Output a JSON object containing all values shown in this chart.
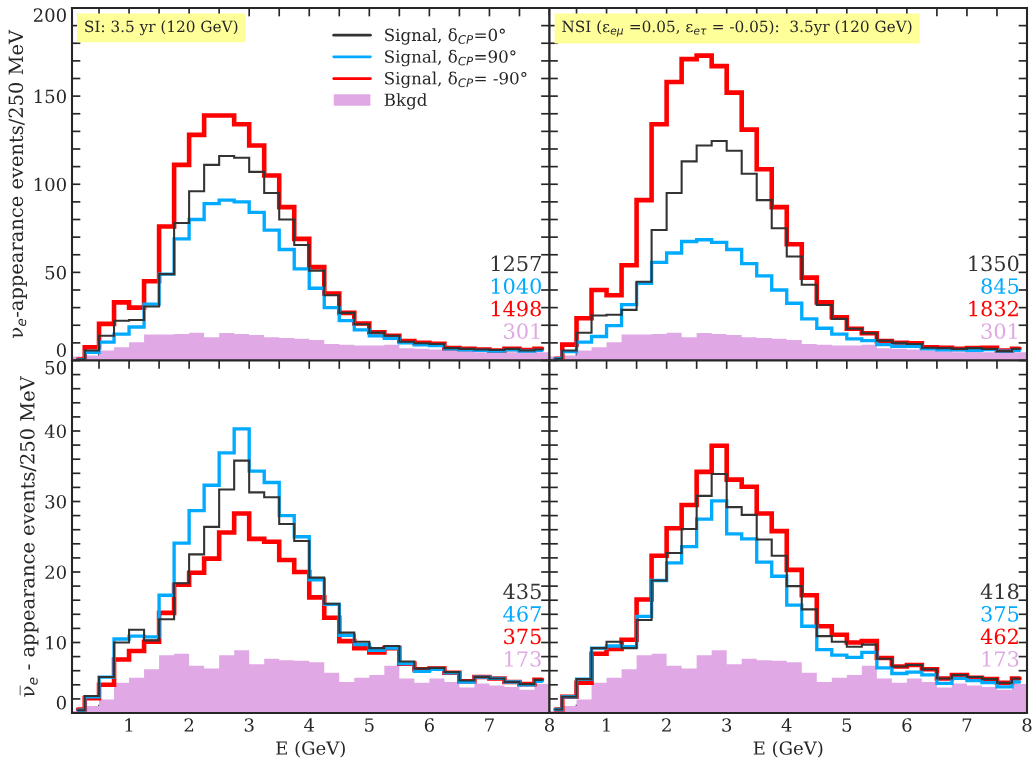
{
  "chart_data": [
    {
      "type": "histogram",
      "ylabel": "ν$_{e}$-appearance events/250 MeV",
      "bins": [
        0.05,
        0.25,
        0.5,
        0.75,
        1,
        1.25,
        1.5,
        1.75,
        2,
        2.25,
        2.5,
        2.75,
        3,
        3.25,
        3.5,
        3.75,
        4,
        4.25,
        4.5,
        4.75,
        5,
        5.25,
        5.5,
        5.75,
        6,
        6.25,
        6.5,
        6.75,
        7,
        7.25,
        7.5,
        7.75,
        8
      ],
      "xlim": [
        0.05,
        8
      ],
      "xticks": [
        {
          "value": 0.5,
          "label": null
        },
        1,
        {
          "value": 1.5,
          "label": null
        },
        2,
        {
          "value": 2.5,
          "label": null
        },
        3,
        {
          "value": 3.5,
          "label": null
        },
        4,
        {
          "value": 4.5,
          "label": null
        },
        5,
        {
          "value": 5.5,
          "label": null
        },
        6,
        {
          "value": 6.5,
          "label": null
        },
        7,
        {
          "value": 7.5,
          "label": null
        },
        8
      ],
      "ylim": [
        0,
        200
      ],
      "yticks": [
        0,
        {
          "value": 10,
          "label": null
        },
        {
          "value": 20,
          "label": null
        },
        {
          "value": 30,
          "label": null
        },
        {
          "value": 40,
          "label": null
        },
        50,
        {
          "value": 60,
          "label": null
        },
        {
          "value": 70,
          "label": null
        },
        {
          "value": 80,
          "label": null
        },
        {
          "value": 90,
          "label": null
        },
        100,
        {
          "value": 110,
          "label": null
        },
        {
          "value": 120,
          "label": null
        },
        {
          "value": 130,
          "label": null
        },
        {
          "value": 140,
          "label": null
        },
        150,
        {
          "value": 160,
          "label": null
        },
        {
          "value": 170,
          "label": null
        },
        {
          "value": 180,
          "label": null
        },
        {
          "value": 190,
          "label": null
        },
        200
      ],
      "x": [
        0.15,
        0.375,
        0.625,
        0.875,
        1.125,
        1.375,
        1.625,
        1.875,
        2.125,
        2.375,
        2.625,
        2.875,
        3.125,
        3.375,
        3.625,
        3.875,
        4.125,
        4.375,
        4.625,
        4.875,
        5.125,
        5.375,
        5.625,
        5.875,
        6.125,
        6.375,
        6.625,
        6.875,
        7.125,
        7.375,
        7.625,
        7.875
      ],
      "tick_labels": "y",
      "legend": "top right",
      "series": [
        {
          "name": "Signal, δ$_{CP}$=0°",
          "type": "step",
          "color": "#333333",
          "values": [
            0.5,
            5.7,
            14,
            22.6,
            23,
            30.6,
            49,
            78,
            96,
            111,
            116,
            115,
            107,
            95,
            80,
            65.5,
            51,
            37,
            27,
            20.6,
            15.8,
            14,
            10.6,
            9.8,
            9.4,
            7,
            6.6,
            6.2,
            6,
            6.6,
            5.7,
            6.2
          ]
        },
        {
          "name": "Signal, δ$_{CP}$=90°",
          "type": "step",
          "color": "#00aaff",
          "values": [
            0.5,
            4.7,
            10.4,
            15,
            19,
            32,
            49,
            69,
            80,
            89,
            91,
            90,
            84,
            74,
            63,
            52,
            41,
            30,
            22.6,
            17.4,
            14,
            12.6,
            10,
            8.9,
            8.5,
            6.6,
            6,
            5.7,
            5.3,
            6,
            5.3,
            5.7
          ]
        },
        {
          "name": "Signal, δ$_{CP}$= -90°",
          "type": "step",
          "color": "#ff0000",
          "values": [
            0.5,
            7.5,
            20.8,
            33,
            30,
            45,
            76,
            111,
            128,
            139,
            139,
            134,
            122,
            105,
            87,
            69,
            53,
            38,
            27,
            21,
            16,
            14,
            11,
            10,
            9.5,
            7,
            6.6,
            6.2,
            5.7,
            6.6,
            6,
            6.6
          ]
        },
        {
          "name": "Bkgd",
          "type": "histogram",
          "color": "#e0a8e4",
          "values": [
            2.3,
            2.8,
            5.7,
            7.5,
            10.4,
            14.7,
            14.7,
            15,
            15.8,
            13.2,
            15.6,
            15,
            14.5,
            13.2,
            12.8,
            12.3,
            11.7,
            9.4,
            8.9,
            8.5,
            8.5,
            8.9,
            7,
            6.6,
            6.2,
            5.7,
            5.3,
            4.7,
            5.3,
            4.7,
            4.7,
            4.7
          ]
        }
      ],
      "annotations": [
        "SI: 3.5 yr (120 GeV)",
        "1257",
        "1040",
        "1498",
        "301"
      ]
    },
    {
      "type": "histogram",
      "bins": [
        0.05,
        0.25,
        0.5,
        0.75,
        1,
        1.25,
        1.5,
        1.75,
        2,
        2.25,
        2.5,
        2.75,
        3,
        3.25,
        3.5,
        3.75,
        4,
        4.25,
        4.5,
        4.75,
        5,
        5.25,
        5.5,
        5.75,
        6,
        6.25,
        6.5,
        6.75,
        7,
        7.25,
        7.5,
        7.75,
        8
      ],
      "xlim": [
        0.05,
        8
      ],
      "xticks": [
        {
          "value": 0.5,
          "label": null
        },
        1,
        {
          "value": 1.5,
          "label": null
        },
        2,
        {
          "value": 2.5,
          "label": null
        },
        3,
        {
          "value": 3.5,
          "label": null
        },
        4,
        {
          "value": 4.5,
          "label": null
        },
        5,
        {
          "value": 5.5,
          "label": null
        },
        6,
        {
          "value": 6.5,
          "label": null
        },
        7,
        {
          "value": 7.5,
          "label": null
        },
        8
      ],
      "ylim": [
        0,
        200
      ],
      "yticks": [
        0,
        {
          "value": 10,
          "label": null
        },
        {
          "value": 20,
          "label": null
        },
        {
          "value": 30,
          "label": null
        },
        {
          "value": 40,
          "label": null
        },
        50,
        {
          "value": 60,
          "label": null
        },
        {
          "value": 70,
          "label": null
        },
        {
          "value": 80,
          "label": null
        },
        {
          "value": 90,
          "label": null
        },
        100,
        {
          "value": 110,
          "label": null
        },
        {
          "value": 120,
          "label": null
        },
        {
          "value": 130,
          "label": null
        },
        {
          "value": 140,
          "label": null
        },
        150,
        {
          "value": 160,
          "label": null
        },
        {
          "value": 170,
          "label": null
        },
        {
          "value": 180,
          "label": null
        },
        {
          "value": 190,
          "label": null
        },
        200
      ],
      "x": [
        0.15,
        0.375,
        0.625,
        0.875,
        1.125,
        1.375,
        1.625,
        1.875,
        2.125,
        2.375,
        2.625,
        2.875,
        3.125,
        3.375,
        3.625,
        3.875,
        4.125,
        4.375,
        4.625,
        4.875,
        5.125,
        5.375,
        5.625,
        5.875,
        6.125,
        6.375,
        6.625,
        6.875,
        7.125,
        7.375,
        7.625,
        7.875
      ],
      "tick_labels": false,
      "series": [
        {
          "type": "step",
          "color": "#333333",
          "values": [
            1,
            5.7,
            15.7,
            25.5,
            26,
            28.7,
            44.7,
            74,
            95,
            113,
            122,
            124.5,
            119,
            106,
            91,
            75,
            59,
            43,
            31.5,
            23.6,
            18,
            15.5,
            11.3,
            10,
            9.4,
            7.2,
            7,
            6.6,
            7,
            6.6,
            5.3,
            6.6
          ]
        },
        {
          "type": "step",
          "color": "#00aaff",
          "values": [
            1,
            5,
            10.4,
            13.6,
            19.8,
            31.7,
            43.8,
            55.7,
            61,
            67.5,
            68.5,
            67,
            63,
            55,
            48,
            40,
            32.5,
            23.6,
            18.3,
            15,
            12.3,
            11.3,
            9,
            8.1,
            8.1,
            6.6,
            6,
            6,
            5.7,
            6.2,
            5.3,
            5.7
          ]
        },
        {
          "type": "step",
          "color": "#ff0000",
          "values": [
            1,
            9,
            24,
            40,
            37,
            54,
            91,
            134,
            158,
            171,
            173,
            167,
            152,
            131,
            108.5,
            87,
            66,
            47,
            33,
            24.5,
            18,
            15.5,
            11,
            10,
            9.8,
            7.5,
            7.2,
            6.6,
            7,
            7.2,
            5.7,
            6.6
          ]
        },
        {
          "type": "histogram",
          "color": "#e0a8e4",
          "values": [
            2.3,
            2.8,
            5.7,
            7.5,
            10.4,
            14.7,
            14.7,
            15,
            15.8,
            13.2,
            15.6,
            15,
            14.5,
            13.2,
            12.8,
            12.3,
            11.7,
            9.4,
            8.9,
            8.5,
            8.5,
            8.9,
            7,
            6.6,
            6.2,
            5.7,
            5.3,
            4.7,
            5.3,
            4.7,
            4.7,
            4.7
          ]
        }
      ],
      "annotations": [
        "NSI (ε$_{eμ}$ =0.05, ε$_{eτ}$ = -0.05):  3.5yr (120 GeV)",
        "1350",
        "845",
        "1832",
        "301"
      ]
    },
    {
      "type": "histogram",
      "xlabel": "E (GeV)",
      "ylabel": "ν̅$_{e}$ - appearance events/250 MeV",
      "x": [
        0.15,
        0.375,
        0.625,
        0.875,
        1.125,
        1.375,
        1.625,
        1.875,
        2.125,
        2.375,
        2.625,
        2.875,
        3.125,
        3.375,
        3.625,
        3.875,
        4.125,
        4.375,
        4.625,
        4.875,
        5.125,
        5.375,
        5.625,
        5.875,
        6.125,
        6.375,
        6.625,
        6.875,
        7.125,
        7.375,
        7.625,
        7.875
      ],
      "bins": [
        0.05,
        0.25,
        0.5,
        0.75,
        1,
        1.25,
        1.5,
        1.75,
        2,
        2.25,
        2.5,
        2.75,
        3,
        3.25,
        3.5,
        3.75,
        4,
        4.25,
        4.5,
        4.75,
        5,
        5.25,
        5.5,
        5.75,
        6,
        6.25,
        6.5,
        6.75,
        7,
        7.25,
        7.5,
        7.75,
        8
      ],
      "xlim": [
        0.05,
        8
      ],
      "xticks": [
        {
          "value": 0.5,
          "label": null
        },
        1,
        {
          "value": 1.5,
          "label": null
        },
        2,
        {
          "value": 2.5,
          "label": null
        },
        3,
        {
          "value": 3.5,
          "label": null
        },
        4,
        {
          "value": 4.5,
          "label": null
        },
        5,
        {
          "value": 5.5,
          "label": null
        },
        6,
        {
          "value": 6.5,
          "label": null
        },
        7,
        {
          "value": 7.5,
          "label": null
        },
        8
      ],
      "ylim": [
        0,
        50
      ],
      "yticks": [
        0,
        {
          "value": 2,
          "label": null
        },
        {
          "value": 4,
          "label": null
        },
        {
          "value": 6,
          "label": null
        },
        {
          "value": 8,
          "label": null
        },
        10,
        {
          "value": 12,
          "label": null
        },
        {
          "value": 14,
          "label": null
        },
        {
          "value": 16,
          "label": null
        },
        {
          "value": 18,
          "label": null
        },
        20,
        {
          "value": 22,
          "label": null
        },
        {
          "value": 24,
          "label": null
        },
        {
          "value": 26,
          "label": null
        },
        {
          "value": 28,
          "label": null
        },
        30,
        {
          "value": 32,
          "label": null
        },
        {
          "value": 34,
          "label": null
        },
        {
          "value": 36,
          "label": null
        },
        {
          "value": 38,
          "label": null
        },
        40,
        {
          "value": 42,
          "label": null
        },
        {
          "value": 44,
          "label": null
        },
        {
          "value": 46,
          "label": null
        },
        {
          "value": 48,
          "label": null
        },
        50
      ],
      "series": [
        {
          "type": "step",
          "color": "#333333",
          "values": [
            0.4,
            2.4,
            5.1,
            10,
            11.8,
            10.3,
            13.3,
            18.4,
            22.5,
            26.4,
            31.7,
            35.8,
            31.3,
            30.6,
            26.8,
            24.4,
            19.2,
            15.5,
            11.4,
            10.1,
            9.2,
            9.5,
            7.3,
            6.3,
            6.4,
            5.8,
            4.6,
            5.1,
            4.9,
            4.4,
            4.1,
            4.7
          ]
        },
        {
          "type": "step",
          "color": "#00aaff",
          "values": [
            0.4,
            2.3,
            5.1,
            10.5,
            10.9,
            10.8,
            16.7,
            24.1,
            28.7,
            32.3,
            36.9,
            40.3,
            34.3,
            32.7,
            28,
            25,
            18.9,
            15.4,
            11,
            9.7,
            8.9,
            9.2,
            7,
            5.9,
            6.2,
            5.7,
            4.4,
            5.1,
            4.9,
            4.4,
            4,
            4.5
          ]
        },
        {
          "type": "step",
          "color": "#ff0000",
          "values": [
            0.5,
            2.1,
            4,
            7.6,
            8.8,
            10.1,
            14.2,
            18.2,
            19.9,
            21.9,
            25.6,
            28.3,
            24.7,
            24.3,
            21.7,
            20,
            16.4,
            13.5,
            10.2,
            9.2,
            8.6,
            9.2,
            7,
            6.2,
            6.3,
            5.7,
            4.5,
            5.1,
            4.9,
            4.4,
            4.1,
            4.7
          ]
        },
        {
          "type": "histogram",
          "color": "#e0a8e4",
          "values": [
            0.3,
            1,
            1.9,
            4.3,
            5,
            6.2,
            8.2,
            8.4,
            6.7,
            6.3,
            8.2,
            8.9,
            6.9,
            7.7,
            7.5,
            7.4,
            7.2,
            5.7,
            4.4,
            5,
            5.4,
            6.7,
            4.9,
            4.3,
            4.9,
            4.4,
            3.6,
            4.2,
            3.9,
            3.7,
            3.3,
            4.1
          ]
        }
      ],
      "annotations": [
        "435",
        "467",
        "375",
        "173"
      ]
    },
    {
      "type": "histogram",
      "xlabel": "E (GeV)",
      "bins": [
        0.05,
        0.25,
        0.5,
        0.75,
        1,
        1.25,
        1.5,
        1.75,
        2,
        2.25,
        2.5,
        2.75,
        3,
        3.25,
        3.5,
        3.75,
        4,
        4.25,
        4.5,
        4.75,
        5,
        5.25,
        5.5,
        5.75,
        6,
        6.25,
        6.5,
        6.75,
        7,
        7.25,
        7.5,
        7.75,
        8
      ],
      "xlim": [
        0.05,
        8
      ],
      "xticks": [
        {
          "value": 0.5,
          "label": null
        },
        1,
        {
          "value": 1.5,
          "label": null
        },
        2,
        {
          "value": 2.5,
          "label": null
        },
        3,
        {
          "value": 3.5,
          "label": null
        },
        4,
        {
          "value": 4.5,
          "label": null
        },
        5,
        {
          "value": 5.5,
          "label": null
        },
        6,
        {
          "value": 6.5,
          "label": null
        },
        7,
        {
          "value": 7.5,
          "label": null
        },
        8
      ],
      "ylim": [
        0,
        50
      ],
      "yticks": [
        0,
        {
          "value": 2,
          "label": null
        },
        {
          "value": 4,
          "label": null
        },
        {
          "value": 6,
          "label": null
        },
        {
          "value": 8,
          "label": null
        },
        10,
        {
          "value": 12,
          "label": null
        },
        {
          "value": 14,
          "label": null
        },
        {
          "value": 16,
          "label": null
        },
        {
          "value": 18,
          "label": null
        },
        20,
        {
          "value": 22,
          "label": null
        },
        {
          "value": 24,
          "label": null
        },
        {
          "value": 26,
          "label": null
        },
        {
          "value": 28,
          "label": null
        },
        30,
        {
          "value": 32,
          "label": null
        },
        {
          "value": 34,
          "label": null
        },
        {
          "value": 36,
          "label": null
        },
        {
          "value": 38,
          "label": null
        },
        40,
        {
          "value": 42,
          "label": null
        },
        {
          "value": 44,
          "label": null
        },
        {
          "value": 46,
          "label": null
        },
        {
          "value": 48,
          "label": null
        },
        50
      ],
      "x": [
        0.15,
        0.375,
        0.625,
        0.875,
        1.125,
        1.375,
        1.625,
        1.875,
        2.125,
        2.375,
        2.625,
        2.875,
        3.125,
        3.375,
        3.625,
        3.875,
        4.125,
        4.375,
        4.625,
        4.875,
        5.125,
        5.375,
        5.625,
        5.875,
        6.125,
        6.375,
        6.625,
        6.875,
        7.125,
        7.375,
        7.625,
        7.875
      ],
      "tick_labels": "x",
      "series": [
        {
          "type": "step",
          "color": "#333333",
          "values": [
            0.5,
            2.3,
            4.8,
            9.2,
            10.1,
            9.2,
            13.2,
            18.8,
            22.7,
            26.1,
            30.8,
            33.9,
            29.2,
            28.1,
            24.6,
            22.3,
            18,
            14.7,
            10.9,
            10.1,
            9.4,
            9.7,
            7.7,
            6.6,
            6.8,
            6.2,
            4.9,
            5.4,
            5.1,
            4.8,
            4.3,
            4.9
          ]
        },
        {
          "type": "step",
          "color": "#00aaff",
          "values": [
            0.5,
            2.3,
            4.8,
            9.2,
            9.5,
            9.4,
            13.7,
            18.8,
            21.3,
            23.6,
            27.5,
            30.1,
            25.4,
            24.7,
            21.4,
            19.4,
            15.3,
            12.3,
            9,
            8.2,
            7.9,
            8.6,
            6.4,
            5.6,
            5.8,
            5.4,
            4.2,
            4.9,
            4.6,
            4.3,
            3.7,
            4.4
          ]
        },
        {
          "type": "step",
          "color": "#ff0000",
          "values": [
            0.5,
            2.3,
            4.3,
            8.4,
            9.1,
            10.4,
            16.1,
            22.3,
            26.2,
            29.5,
            34.2,
            37.9,
            33.1,
            32.1,
            28.3,
            25.8,
            20.3,
            16.7,
            12.3,
            11.1,
            10,
            10.2,
            7.8,
            6.6,
            6.8,
            6.2,
            4.9,
            5.4,
            5,
            4.8,
            4.3,
            4.9
          ]
        },
        {
          "type": "histogram",
          "color": "#e0a8e4",
          "values": [
            0.3,
            1,
            1.9,
            4.3,
            5,
            6.2,
            8.2,
            8.4,
            6.7,
            6.3,
            8.2,
            8.9,
            6.9,
            7.7,
            7.5,
            7.4,
            7.2,
            5.7,
            4.4,
            5,
            5.4,
            6.7,
            4.9,
            4.3,
            4.9,
            4.4,
            3.6,
            4.2,
            3.9,
            3.7,
            3.3,
            4.1
          ]
        }
      ],
      "annotations": [
        "418",
        "375",
        "462",
        "173"
      ]
    }
  ]
}
